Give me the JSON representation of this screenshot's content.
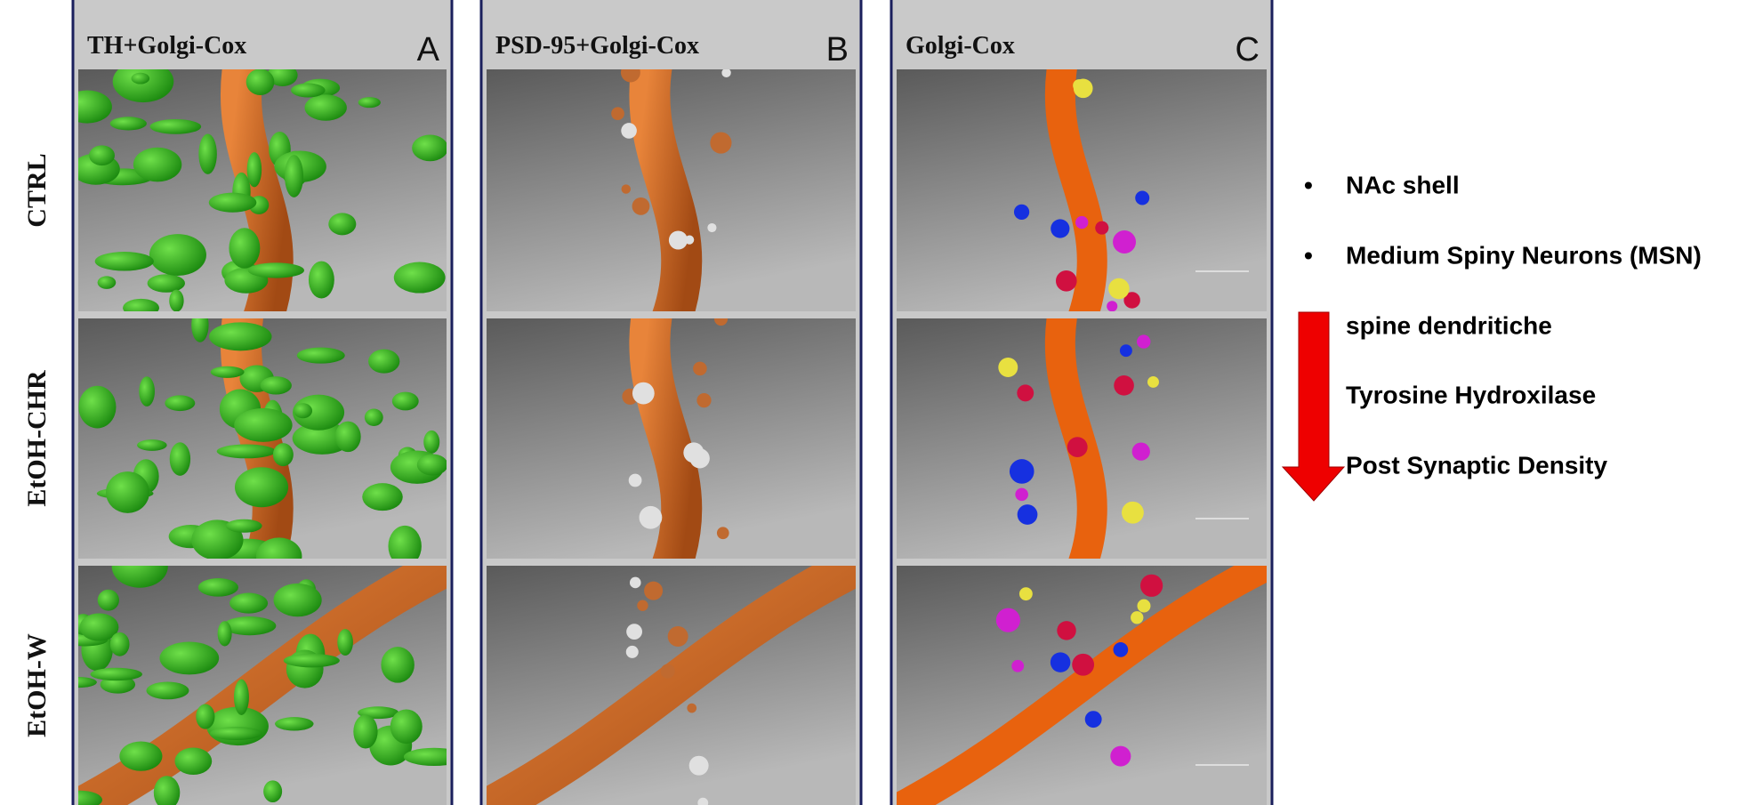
{
  "columns": [
    {
      "title": "TH+Golgi-Cox",
      "letter": "A"
    },
    {
      "title": "PSD-95+Golgi-Cox",
      "letter": "B"
    },
    {
      "title": "Golgi-Cox",
      "letter": "C"
    }
  ],
  "rows": [
    "CTRL",
    "EtOH-CHR",
    "EtOH-W"
  ],
  "list": {
    "bullets": [
      "NAc shell",
      "Medium Spiny Neurons (MSN)"
    ],
    "items": [
      "spine dendritiche",
      "Tyrosine Hydroxilase",
      "Post Synaptic Density"
    ]
  }
}
